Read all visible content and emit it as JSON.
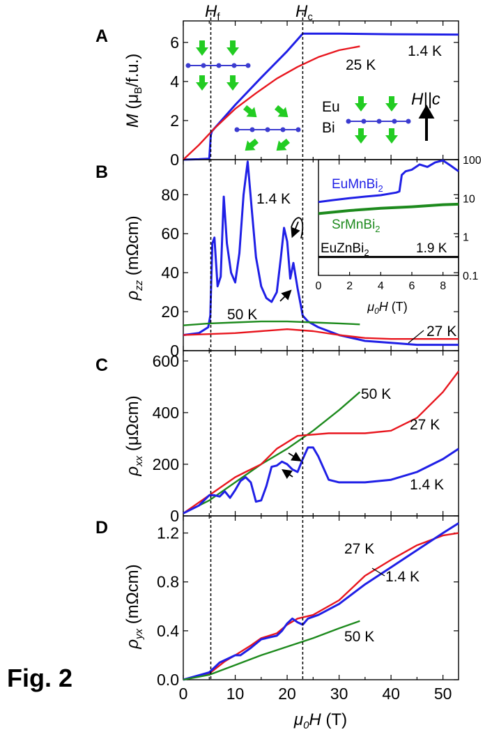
{
  "figure_label": "Fig. 2",
  "x_label": "μ0H (T)",
  "vline_labels": {
    "flop": "Hf",
    "crit": "Hc"
  },
  "colors": {
    "blue": "#1f1fe6",
    "red": "#e8161e",
    "green": "#1d8a1d",
    "black": "#000000",
    "arrow_green": "#22cc22",
    "atom": "#3b3bd0"
  },
  "chart_data": [
    {
      "panel": "A",
      "type": "line",
      "ylabel": "M (μB/f.u.)",
      "xlim": [
        0,
        53
      ],
      "ylim": [
        0,
        7.1
      ],
      "yticks": [
        "0",
        "2",
        "4",
        "6"
      ],
      "xticks": [
        "0",
        "10",
        "20",
        "30",
        "40",
        "50"
      ],
      "vlines": [
        5.3,
        23
      ],
      "series": [
        {
          "name": "1.4 K",
          "color": "blue",
          "x": [
            0,
            3,
            5.0,
            5.3,
            5.5,
            10,
            15,
            20,
            23,
            30,
            40,
            53
          ],
          "y": [
            0,
            0.02,
            0.05,
            1.25,
            1.45,
            2.8,
            4.2,
            5.55,
            6.45,
            6.45,
            6.42,
            6.4
          ]
        },
        {
          "name": "25 K",
          "color": "red",
          "x": [
            0,
            3,
            6,
            10,
            14,
            18,
            22,
            26,
            30,
            34
          ],
          "y": [
            0,
            0.75,
            1.6,
            2.6,
            3.4,
            4.15,
            4.75,
            5.25,
            5.6,
            5.8
          ]
        }
      ],
      "annotations": [
        {
          "text": "1.4 K",
          "color": "black"
        },
        {
          "text": "25 K",
          "color": "black"
        }
      ],
      "inset_labels": {
        "eu": "Eu",
        "bi": "Bi",
        "field": "H||c"
      }
    },
    {
      "panel": "B",
      "type": "line",
      "ylabel": "ρzz (mΩcm)",
      "xlim": [
        0,
        53
      ],
      "ylim": [
        0,
        98
      ],
      "yticks": [
        "0",
        "20",
        "40",
        "60",
        "80"
      ],
      "xticks": [
        "0",
        "10",
        "20",
        "30",
        "40",
        "50"
      ],
      "series": [
        {
          "name": "1.4 K",
          "color": "blue",
          "x": [
            0,
            3,
            4.8,
            5.2,
            5.6,
            6.0,
            6.6,
            7.2,
            7.8,
            8.4,
            9.2,
            10,
            10.8,
            11.6,
            12.4,
            13.2,
            14,
            15,
            16,
            17,
            18,
            18.8,
            19.4,
            20,
            20.6,
            21.2,
            22,
            23,
            24,
            26,
            30,
            35,
            40,
            45,
            53
          ],
          "y": [
            8,
            9,
            12,
            18,
            55,
            58,
            33,
            38,
            79,
            55,
            40,
            35,
            50,
            80,
            97,
            72,
            48,
            33,
            27,
            25,
            30,
            48,
            63,
            56,
            37,
            45,
            32,
            18,
            15,
            12,
            8,
            5,
            4,
            3,
            3
          ]
        },
        {
          "name": "50 K",
          "color": "green",
          "x": [
            0,
            5,
            10,
            15,
            20,
            25,
            30,
            34
          ],
          "y": [
            13,
            14,
            14.5,
            15,
            15,
            14.5,
            14,
            13.5
          ]
        },
        {
          "name": "27 K",
          "color": "red",
          "x": [
            0,
            5,
            10,
            15,
            20,
            25,
            30,
            35,
            40,
            45,
            53
          ],
          "y": [
            8,
            8.5,
            9,
            10,
            11,
            10,
            8,
            6.5,
            6,
            6,
            6
          ]
        }
      ],
      "annotations": [
        {
          "text": "1.4 K"
        },
        {
          "text": "50 K"
        },
        {
          "text": "27 K"
        }
      ],
      "inset": {
        "type": "line",
        "xlabel": "μ0H (T)",
        "xlim": [
          0,
          9
        ],
        "ylog": true,
        "ylim": [
          0.1,
          100
        ],
        "xticks": [
          "0",
          "2",
          "4",
          "6",
          "8"
        ],
        "yticks": [
          "0.1",
          "1",
          "10",
          "100"
        ],
        "series": [
          {
            "name": "EuMnBi2",
            "color": "blue",
            "x": [
              0,
              1,
              2,
              3,
              4,
              5,
              5.2,
              5.35,
              5.6,
              6,
              6.5,
              7,
              7.5,
              8,
              8.5,
              9
            ],
            "y": [
              8,
              9,
              10,
              11,
              12,
              14,
              15,
              40,
              50,
              55,
              75,
              65,
              85,
              95,
              70,
              50
            ]
          },
          {
            "name": "SrMnBi2",
            "color": "green",
            "x": [
              0,
              2,
              4,
              6,
              8,
              9
            ],
            "y": [
              4,
              4.8,
              5.5,
              6,
              6.8,
              7
            ]
          },
          {
            "name": "EuZnBi2",
            "color": "black",
            "x": [
              0,
              9
            ],
            "y": [
              0.3,
              0.3
            ]
          }
        ],
        "labels": {
          "eu_mn": "EuMnBi2",
          "sr_mn": "SrMnBi2",
          "eu_zn": "EuZnBi2",
          "temp": "1.9 K"
        }
      }
    },
    {
      "panel": "C",
      "type": "line",
      "ylabel": "ρxx (μΩcm)",
      "xlim": [
        0,
        53
      ],
      "ylim": [
        0,
        640
      ],
      "yticks": [
        "0",
        "200",
        "400",
        "600"
      ],
      "xticks": [
        "0",
        "10",
        "20",
        "30",
        "40",
        "50"
      ],
      "series": [
        {
          "name": "50 K",
          "color": "green",
          "x": [
            0,
            5,
            10,
            15,
            20,
            25,
            30,
            34
          ],
          "y": [
            10,
            60,
            130,
            200,
            260,
            330,
            410,
            480
          ]
        },
        {
          "name": "27 K",
          "color": "red",
          "x": [
            0,
            5,
            10,
            12,
            15,
            18,
            22,
            28,
            35,
            40,
            45,
            50,
            53
          ],
          "y": [
            10,
            80,
            150,
            170,
            200,
            260,
            310,
            320,
            320,
            330,
            380,
            480,
            560
          ]
        },
        {
          "name": "1.4 K",
          "color": "blue",
          "x": [
            0,
            3,
            5,
            6,
            7,
            8,
            9,
            10,
            11,
            12,
            13,
            14,
            15,
            16,
            17,
            18,
            19,
            20,
            21,
            22,
            23,
            24,
            25,
            26,
            28,
            30,
            35,
            40,
            45,
            50,
            53
          ],
          "y": [
            10,
            40,
            80,
            80,
            75,
            95,
            70,
            100,
            135,
            150,
            130,
            55,
            60,
            115,
            190,
            195,
            210,
            200,
            180,
            170,
            220,
            265,
            265,
            230,
            140,
            130,
            130,
            140,
            170,
            220,
            260
          ]
        }
      ],
      "annotations": [
        {
          "text": "50 K"
        },
        {
          "text": "27 K"
        },
        {
          "text": "1.4 K"
        }
      ]
    },
    {
      "panel": "D",
      "type": "line",
      "ylabel": "ρyx (mΩcm)",
      "xlim": [
        0,
        53
      ],
      "ylim": [
        0,
        1.34
      ],
      "yticks": [
        "0.0",
        "0.4",
        "0.8",
        "1.2"
      ],
      "xticks": [
        "0",
        "10",
        "20",
        "30",
        "40",
        "50"
      ],
      "series": [
        {
          "name": "27 K",
          "color": "red",
          "x": [
            0,
            5,
            8,
            10,
            13,
            15,
            18,
            20,
            22,
            25,
            30,
            35,
            40,
            45,
            50,
            53
          ],
          "y": [
            0,
            0.05,
            0.15,
            0.2,
            0.28,
            0.34,
            0.38,
            0.45,
            0.5,
            0.53,
            0.65,
            0.85,
            0.98,
            1.1,
            1.18,
            1.2
          ]
        },
        {
          "name": "1.4 K",
          "color": "blue",
          "x": [
            0,
            5,
            7,
            9,
            10,
            11,
            13,
            15,
            17,
            18,
            19,
            20,
            21,
            22,
            23,
            24,
            26,
            30,
            35,
            40,
            45,
            50,
            53
          ],
          "y": [
            0,
            0.06,
            0.14,
            0.18,
            0.2,
            0.2,
            0.26,
            0.33,
            0.35,
            0.36,
            0.4,
            0.46,
            0.5,
            0.47,
            0.45,
            0.5,
            0.53,
            0.62,
            0.78,
            0.92,
            1.06,
            1.2,
            1.28
          ]
        },
        {
          "name": "50 K",
          "color": "green",
          "x": [
            0,
            5,
            10,
            15,
            20,
            25,
            30,
            34
          ],
          "y": [
            0,
            0.04,
            0.12,
            0.2,
            0.27,
            0.34,
            0.42,
            0.48
          ]
        }
      ],
      "annotations": [
        {
          "text": "27 K"
        },
        {
          "text": "1.4 K"
        },
        {
          "text": "50 K"
        }
      ]
    }
  ]
}
